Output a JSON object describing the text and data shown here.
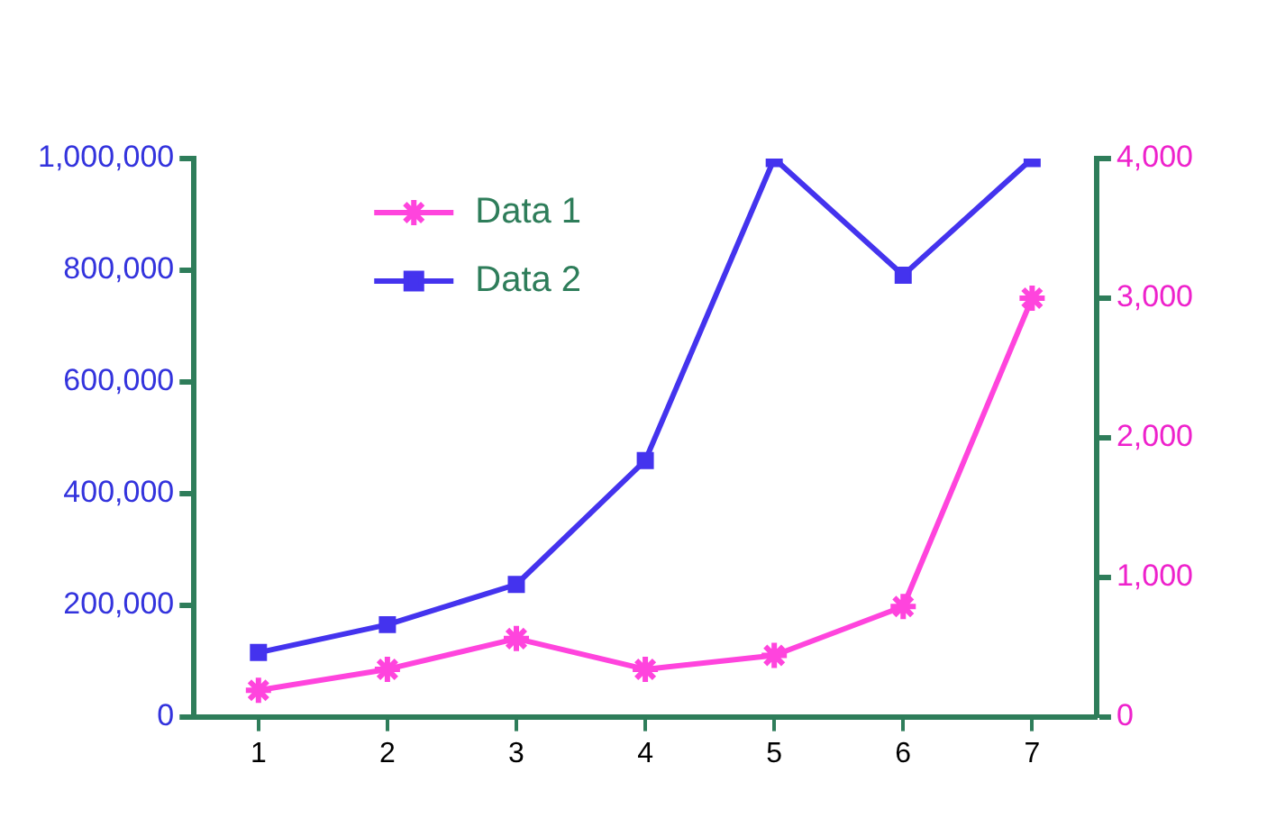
{
  "chart_data": {
    "type": "line",
    "categories": [
      "1",
      "2",
      "3",
      "4",
      "5",
      "6",
      "7"
    ],
    "series": [
      {
        "name": "Data 1",
        "color": "#ff44dd",
        "axis": "y2",
        "marker": "cross",
        "values": [
          190,
          340,
          560,
          340,
          440,
          790,
          3000
        ]
      },
      {
        "name": "Data 2",
        "color": "#4433ee",
        "axis": "y",
        "marker": "square",
        "values": [
          115000,
          165000,
          237000,
          459000,
          1000000,
          791000,
          1000000
        ]
      }
    ],
    "ylim": [
      0,
      1000000
    ],
    "yticks": [
      0,
      {
        "value": 200000,
        "label": "200,000"
      },
      {
        "value": 400000,
        "label": "400,000"
      },
      {
        "value": 600000,
        "label": "600,000"
      },
      {
        "value": 800000,
        "label": "800,000"
      },
      {
        "value": 1000000,
        "label": "1,000,000"
      }
    ],
    "y2lim": [
      0,
      4000
    ],
    "y2ticks": [
      0,
      {
        "value": 1000,
        "label": "1,000"
      },
      {
        "value": 2000,
        "label": "2,000"
      },
      {
        "value": 3000,
        "label": "3,000"
      },
      {
        "value": 4000,
        "label": "4,000"
      }
    ],
    "grid": false,
    "legend": "top left",
    "line_style": "solid"
  }
}
